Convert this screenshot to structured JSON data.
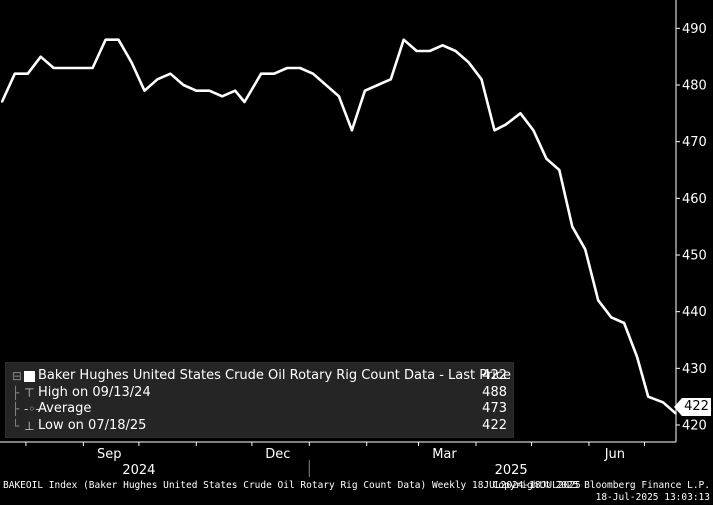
{
  "chart_data": {
    "type": "line",
    "title": "Baker Hughes United States Crude Oil Rotary Rig Count Data",
    "x_range": [
      "2024-07-18",
      "2025-07-18"
    ],
    "ylim": [
      417,
      495
    ],
    "yticks": [
      420,
      430,
      440,
      450,
      460,
      470,
      480,
      490
    ],
    "months": [
      "Sep",
      "Dec",
      "Mar",
      "Jun"
    ],
    "years": [
      "2024",
      "2025"
    ],
    "grid": false,
    "legend_position": "bottom-left",
    "line_color": "#ffffff",
    "series": [
      {
        "name": "Baker Hughes United States Crude Oil Rotary Rig Count Data",
        "x": [
          "2024-07-19",
          "2024-07-26",
          "2024-08-02",
          "2024-08-09",
          "2024-08-16",
          "2024-08-23",
          "2024-08-30",
          "2024-09-06",
          "2024-09-13",
          "2024-09-20",
          "2024-09-27",
          "2024-10-04",
          "2024-10-11",
          "2024-10-18",
          "2024-10-25",
          "2024-11-01",
          "2024-11-08",
          "2024-11-15",
          "2024-11-22",
          "2024-11-27",
          "2024-12-06",
          "2024-12-13",
          "2024-12-20",
          "2024-12-27",
          "2025-01-03",
          "2025-01-10",
          "2025-01-17",
          "2025-01-24",
          "2025-01-31",
          "2025-02-07",
          "2025-02-14",
          "2025-02-21",
          "2025-02-28",
          "2025-03-07",
          "2025-03-14",
          "2025-03-21",
          "2025-03-28",
          "2025-04-04",
          "2025-04-11",
          "2025-04-17",
          "2025-04-25",
          "2025-05-02",
          "2025-05-09",
          "2025-05-16",
          "2025-05-23",
          "2025-05-30",
          "2025-06-06",
          "2025-06-13",
          "2025-06-20",
          "2025-06-27",
          "2025-07-03",
          "2025-07-11",
          "2025-07-18"
        ],
        "values": [
          477,
          482,
          482,
          485,
          483,
          483,
          483,
          483,
          488,
          488,
          484,
          479,
          481,
          482,
          480,
          479,
          479,
          478,
          479,
          477,
          482,
          482,
          483,
          483,
          482,
          480,
          478,
          472,
          479,
          480,
          481,
          488,
          486,
          486,
          487,
          486,
          484,
          481,
          472,
          473,
          475,
          472,
          467,
          465,
          455,
          451,
          442,
          439,
          438,
          432,
          425,
          424,
          422
        ]
      }
    ],
    "legend": {
      "title": "Baker Hughes United States Crude Oil Rotary Rig Count Data - Last Price",
      "last_value": "422",
      "high_label": "High on 09/13/24",
      "high_value": "488",
      "average_label": "Average",
      "average_value": "473",
      "low_label": "Low on 07/18/25",
      "low_value": "422"
    },
    "last_price_tag": "422"
  },
  "footer": {
    "left": "BAKEOIL Index (Baker Hughes United States Crude Oil Rotary Rig Count Data)  Weekly 18JUL2024-18JUL2025",
    "copyright": "Copyright© 2025 Bloomberg Finance L.P.",
    "timestamp": "18-Jul-2025 13:03:13"
  }
}
